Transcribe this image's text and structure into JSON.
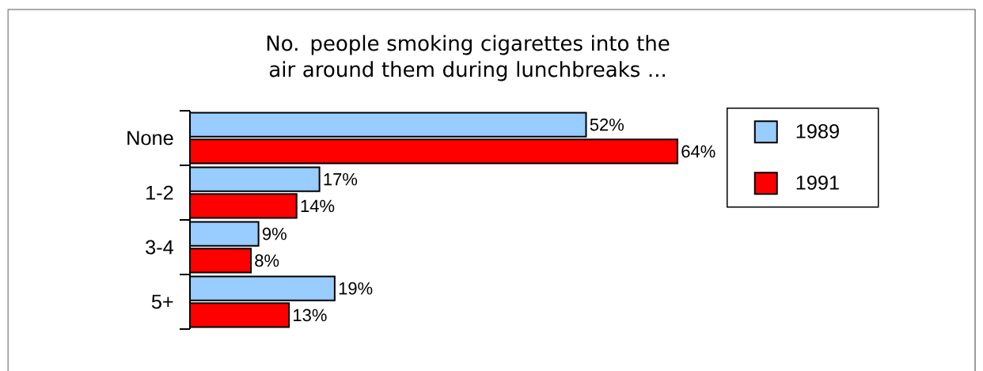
{
  "chart_data": {
    "type": "bar",
    "orientation": "horizontal",
    "title": "No. people smoking cigarettes into the air around them during lunchbreaks ...",
    "categories": [
      "None",
      "1-2",
      "3-4",
      "5+"
    ],
    "series": [
      {
        "name": "1989",
        "color": "#99ccff",
        "values": [
          52,
          17,
          9,
          19
        ],
        "value_labels": [
          "52%",
          "17%",
          "9%",
          "19%"
        ]
      },
      {
        "name": "1991",
        "color": "#ff0000",
        "values": [
          64,
          14,
          8,
          13
        ],
        "value_labels": [
          "64%",
          "14%",
          "8%",
          "13%"
        ]
      }
    ],
    "tick_labels": "y",
    "legend": "top right"
  }
}
